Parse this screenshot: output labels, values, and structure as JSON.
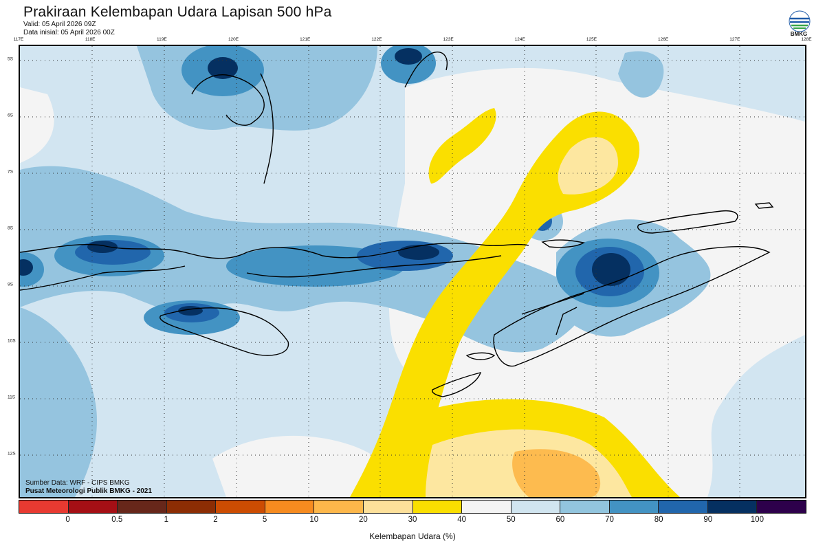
{
  "header": {
    "title": "Prakiraan Kelembapan Udara Lapisan 500 hPa",
    "valid": "Valid: 05 April 2026 09Z",
    "initial": "Data inisial: 05 April 2026 00Z",
    "logo_text": "BMKG"
  },
  "map": {
    "lon_labels": [
      "117E",
      "118E",
      "119E",
      "120E",
      "121E",
      "122E",
      "123E",
      "124E",
      "125E",
      "126E",
      "127E",
      "128E"
    ],
    "lat_labels": [
      "5S",
      "6S",
      "7S",
      "8S",
      "9S",
      "10S",
      "11S",
      "12S"
    ],
    "colors": {
      "c20_30": "#fde7a0",
      "c30_40": "#fadf00",
      "c40_50": "#f4f4f4",
      "c50_60": "#d2e5f1",
      "c60_70": "#95c4df",
      "c70_80": "#4393c3",
      "c80_90": "#2166ac",
      "c90_100": "#053061",
      "orange": "#fdbb4f"
    }
  },
  "credits": {
    "source": "Sumber Data: WRF - CIPS BMKG",
    "org": "Pusat Meteorologi Publik BMKG - 2021"
  },
  "colorbar": {
    "colors": [
      "#e83a31",
      "#a50f15",
      "#67271a",
      "#8c2d04",
      "#cc4c02",
      "#f68b1f",
      "#fdb74a",
      "#fde09a",
      "#fadf00",
      "#f4f4f4",
      "#d1e5f0",
      "#92c5de",
      "#4393c3",
      "#2166ac",
      "#053061",
      "#2d004b"
    ],
    "ticks": [
      "0",
      "0.5",
      "1",
      "2",
      "5",
      "10",
      "20",
      "30",
      "40",
      "50",
      "60",
      "70",
      "80",
      "90",
      "100"
    ],
    "label": "Kelembapan Udara (%)"
  }
}
